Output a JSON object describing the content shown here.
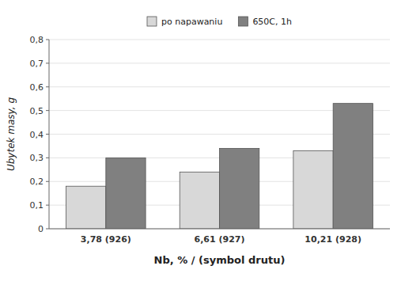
{
  "chart_data": {
    "type": "bar",
    "categories": [
      "3,78 (926)",
      "6,61 (927)",
      "10,21 (928)"
    ],
    "series": [
      {
        "name": "po napawaniu",
        "color": "#d8d8d8",
        "values": [
          0.18,
          0.24,
          0.33
        ]
      },
      {
        "name": "650C, 1h",
        "color": "#808080",
        "values": [
          0.3,
          0.34,
          0.53
        ]
      }
    ],
    "xlabel": "Nb, % / (symbol drutu)",
    "ylabel": "Ubytek masy, g",
    "ylim": [
      0,
      0.8
    ],
    "yticks": [
      0,
      {
        "value": 0.1,
        "label": "0,1"
      },
      {
        "value": 0.2,
        "label": "0,2"
      },
      {
        "value": 0.3,
        "label": "0,3"
      },
      {
        "value": 0.4,
        "label": "0,4"
      },
      {
        "value": 0.5,
        "label": "0,5"
      },
      {
        "value": 0.6,
        "label": "0,6"
      },
      {
        "value": 0.7,
        "label": "0,7"
      },
      {
        "value": 0.8,
        "label": "0,8"
      }
    ],
    "grid": true,
    "legend": "top"
  }
}
